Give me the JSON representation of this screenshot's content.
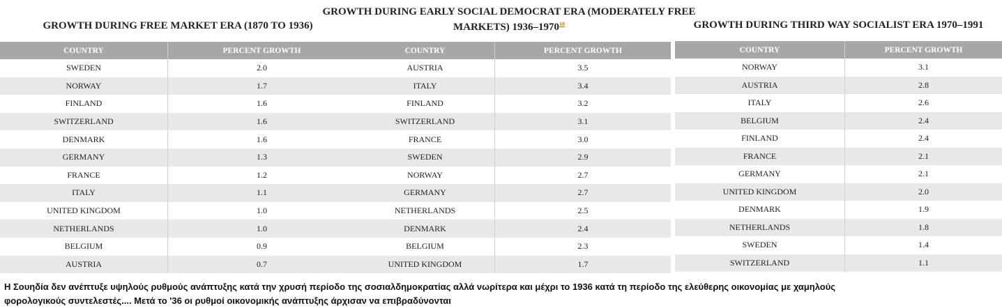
{
  "tables": [
    {
      "title": "GROWTH DURING FREE MARKET ERA (1870 TO 1936)",
      "columns": [
        "COUNTRY",
        "PERCENT GROWTH"
      ],
      "rows": [
        [
          "SWEDEN",
          "2.0"
        ],
        [
          "NORWAY",
          "1.7"
        ],
        [
          "FINLAND",
          "1.6"
        ],
        [
          "SWITZERLAND",
          "1.6"
        ],
        [
          "DENMARK",
          "1.6"
        ],
        [
          "GERMANY",
          "1.3"
        ],
        [
          "FRANCE",
          "1.2"
        ],
        [
          "ITALY",
          "1.1"
        ],
        [
          "UNITED KINGDOM",
          "1.0"
        ],
        [
          "NETHERLANDS",
          "1.0"
        ],
        [
          "BELGIUM",
          "0.9"
        ],
        [
          "AUSTRIA",
          "0.7"
        ]
      ]
    },
    {
      "title": "GROWTH DURING EARLY SOCIAL DEMOCRAT ERA (MODERATELY FREE MARKETS) 1936–1970",
      "title_note": "10",
      "columns": [
        "COUNTRY",
        "PERCENT GROWTH"
      ],
      "rows": [
        [
          "AUSTRIA",
          "3.5"
        ],
        [
          "ITALY",
          "3.4"
        ],
        [
          "FINLAND",
          "3.2"
        ],
        [
          "SWITZERLAND",
          "3.1"
        ],
        [
          "FRANCE",
          "3.0"
        ],
        [
          "SWEDEN",
          "2.9"
        ],
        [
          "NORWAY",
          "2.7"
        ],
        [
          "GERMANY",
          "2.7"
        ],
        [
          "NETHERLANDS",
          "2.5"
        ],
        [
          "DENMARK",
          "2.4"
        ],
        [
          "BELGIUM",
          "2.3"
        ],
        [
          "UNITED KINGDOM",
          "1.7"
        ]
      ]
    },
    {
      "title": "GROWTH DURING THIRD WAY SOCIALIST ERA 1970–1991",
      "columns": [
        "COUNTRY",
        "PERCENT GROWTH"
      ],
      "rows": [
        [
          "NORWAY",
          "3.1"
        ],
        [
          "AUSTRIA",
          "2.8"
        ],
        [
          "ITALY",
          "2.6"
        ],
        [
          "BELGIUM",
          "2.4"
        ],
        [
          "FINLAND",
          "2.4"
        ],
        [
          "FRANCE",
          "2.1"
        ],
        [
          "GERMANY",
          "2.1"
        ],
        [
          "UNITED KINGDOM",
          "2.0"
        ],
        [
          "DENMARK",
          "1.9"
        ],
        [
          "NETHERLANDS",
          "1.8"
        ],
        [
          "SWEDEN",
          "1.4"
        ],
        [
          "SWITZERLAND",
          "1.1"
        ]
      ]
    }
  ],
  "caption": [
    "Η Σουηδία δεν ανέπτυξε υψηλούς ρυθμούς ανάπτυξης κατά την χρυσή περίοδο της σοσιαλδημοκρατίας αλλά νωρίτερα και μέχρι το 1936 κατά τη περίοδο της ελεύθερης οικονομίας με χαμηλούς",
    "φορολογικούς συντελεστές....  Μετά το '36 οι ρυθμοί οικονομικής ανάπτυξης άρχισαν να επιβραδύνονται"
  ]
}
